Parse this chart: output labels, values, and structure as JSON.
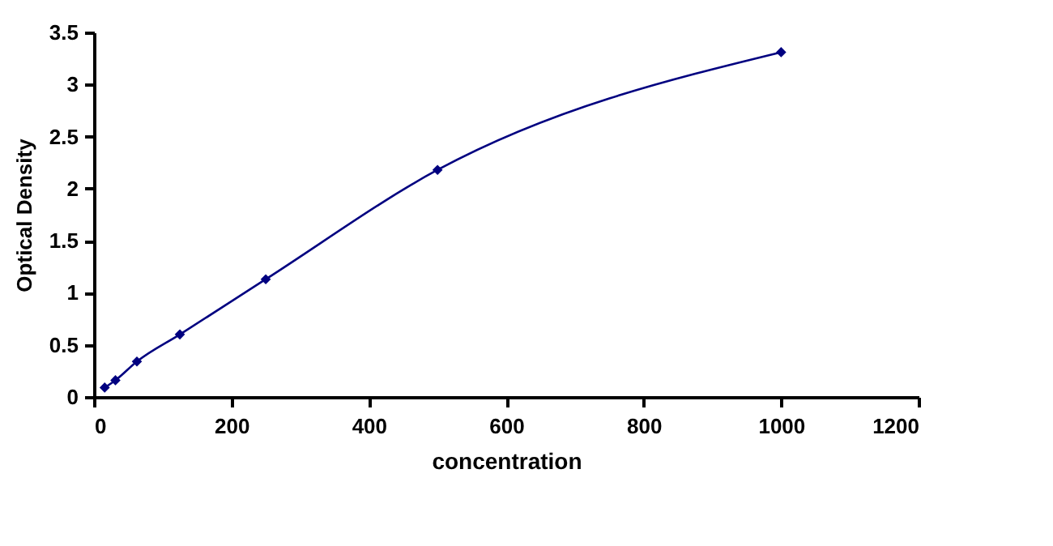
{
  "chart_data": {
    "type": "line",
    "xlabel": "concentration",
    "ylabel": "Optical Density",
    "x": [
      15.6,
      31.25,
      62.5,
      125,
      250,
      500,
      1000
    ],
    "series": [
      {
        "color": "#000080",
        "values": [
          0.09,
          0.16,
          0.34,
          0.6,
          1.13,
          2.18,
          3.31
        ]
      }
    ],
    "xlim": [
      0,
      1200
    ],
    "xticks": [
      0,
      200,
      400,
      600,
      800,
      1000,
      1200
    ],
    "ylim": [
      0,
      3.5
    ],
    "yticks": [
      0,
      0.5,
      1,
      1.5,
      2,
      2.5,
      3,
      3.5
    ],
    "grid": false,
    "legend": false,
    "marker": "diamond",
    "line_style": "solid"
  }
}
